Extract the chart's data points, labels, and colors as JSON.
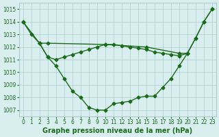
{
  "line1": {
    "x": [
      0,
      1,
      2,
      3,
      4,
      5,
      6,
      7,
      8,
      9,
      10,
      11,
      12,
      13,
      14,
      15,
      16,
      17,
      18,
      19,
      20,
      21,
      22,
      23
    ],
    "y": [
      1014,
      1013,
      1012.3,
      1011.2,
      1010.5,
      1009.5,
      1008.5,
      1008.0,
      1007.2,
      1007.0,
      1007.0,
      1007.5,
      1007.6,
      1007.7,
      1008.0,
      1008.1,
      1008.1,
      1008.8,
      1009.5,
      1010.5,
      1011.5,
      1012.7,
      1014.0,
      1015.0
    ]
  },
  "line2": {
    "x": [
      0,
      2,
      3,
      10,
      15,
      19,
      20,
      21,
      22,
      23
    ],
    "y": [
      1014,
      1012.3,
      1012.3,
      1012.2,
      1012.0,
      1011.5,
      1011.5,
      1012.7,
      1014.0,
      1015.0
    ]
  },
  "line3": {
    "x": [
      2,
      3,
      4,
      5,
      6,
      7,
      8,
      9,
      10,
      11,
      12,
      13,
      14,
      15,
      16,
      17,
      18,
      19,
      20
    ],
    "y": [
      1012.3,
      1011.2,
      1011.0,
      1011.2,
      1011.4,
      1011.6,
      1011.8,
      1012.0,
      1012.2,
      1012.2,
      1012.1,
      1012.0,
      1011.9,
      1011.8,
      1011.6,
      1011.5,
      1011.4,
      1011.3,
      1011.5
    ]
  },
  "ylim": [
    1006.5,
    1015.5
  ],
  "xlim": [
    -0.5,
    23.5
  ],
  "yticks": [
    1007,
    1008,
    1009,
    1010,
    1011,
    1012,
    1013,
    1014,
    1015
  ],
  "xticks": [
    0,
    1,
    2,
    3,
    4,
    5,
    6,
    7,
    8,
    9,
    10,
    11,
    12,
    13,
    14,
    15,
    16,
    17,
    18,
    19,
    20,
    21,
    22,
    23
  ],
  "line_color": "#1a6b1a",
  "bg_color": "#d9eeee",
  "grid_color": "#aacccc",
  "xlabel": "Graphe pression niveau de la mer (hPa)",
  "marker": "D",
  "markersize": 2.5,
  "linewidth": 1.0,
  "xlabel_fontsize": 7,
  "tick_fontsize": 5.5
}
